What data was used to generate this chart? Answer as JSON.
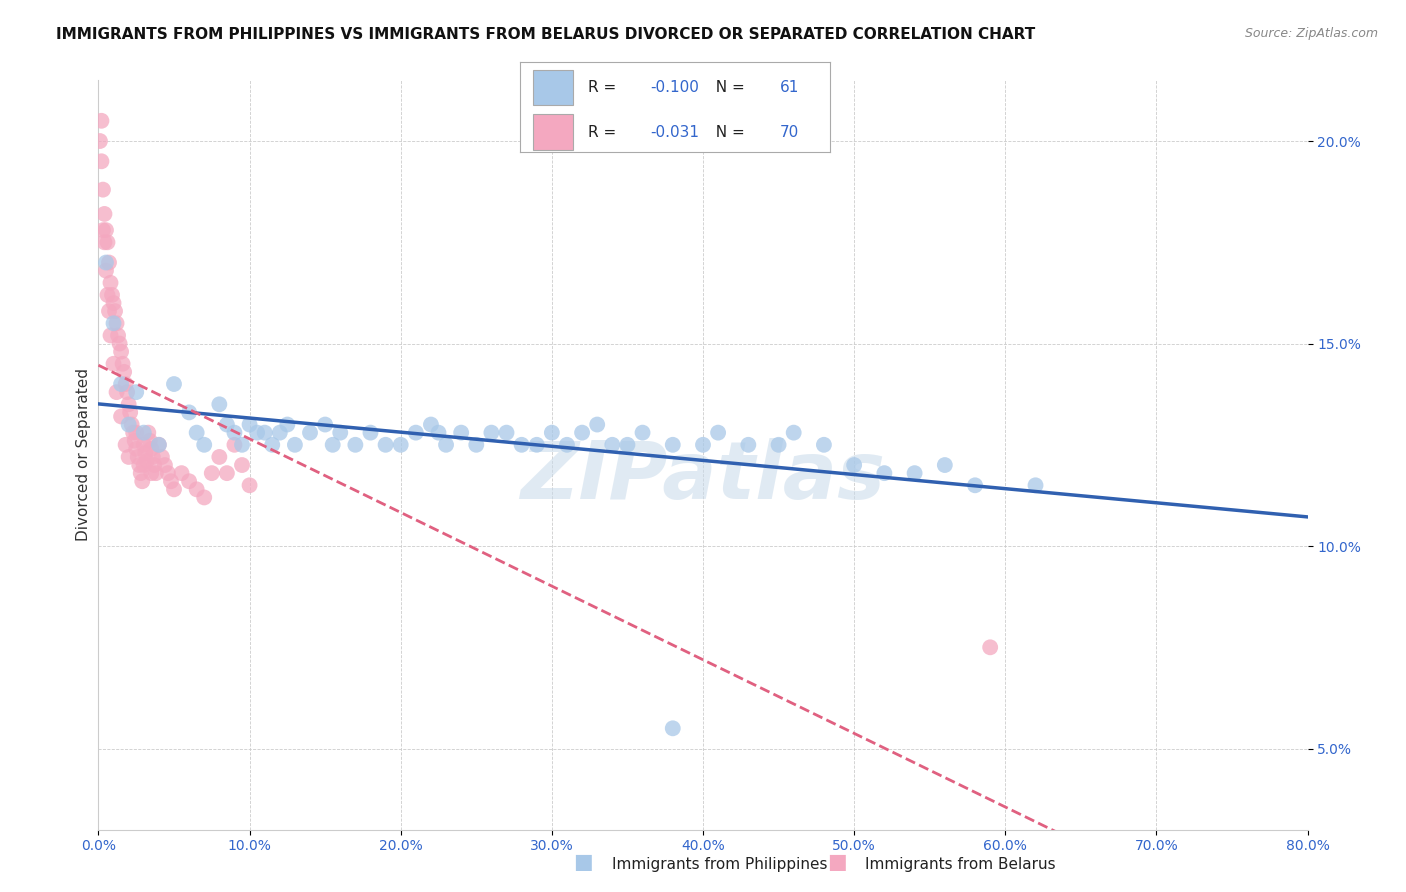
{
  "title": "IMMIGRANTS FROM PHILIPPINES VS IMMIGRANTS FROM BELARUS DIVORCED OR SEPARATED CORRELATION CHART",
  "source": "Source: ZipAtlas.com",
  "ylabel": "Divorced or Separated",
  "legend_label_1": "Immigrants from Philippines",
  "legend_label_2": "Immigrants from Belarus",
  "r1": -0.1,
  "n1": 61,
  "r2": -0.031,
  "n2": 70,
  "color1": "#a8c8e8",
  "color2": "#f4a8c0",
  "line_color1": "#3060b0",
  "line_color2": "#e06080",
  "xlim": [
    0.0,
    0.8
  ],
  "ylim": [
    0.03,
    0.215
  ],
  "xticks": [
    0.0,
    0.1,
    0.2,
    0.3,
    0.4,
    0.5,
    0.6,
    0.7,
    0.8
  ],
  "yticks": [
    0.05,
    0.1,
    0.15,
    0.2
  ],
  "background": "#ffffff",
  "philippines_x": [
    0.005,
    0.01,
    0.015,
    0.02,
    0.025,
    0.03,
    0.04,
    0.05,
    0.06,
    0.065,
    0.07,
    0.08,
    0.085,
    0.09,
    0.095,
    0.1,
    0.105,
    0.11,
    0.115,
    0.12,
    0.125,
    0.13,
    0.14,
    0.15,
    0.155,
    0.16,
    0.17,
    0.18,
    0.19,
    0.2,
    0.21,
    0.22,
    0.225,
    0.23,
    0.24,
    0.25,
    0.26,
    0.27,
    0.28,
    0.29,
    0.3,
    0.31,
    0.32,
    0.33,
    0.34,
    0.35,
    0.36,
    0.38,
    0.4,
    0.41,
    0.43,
    0.45,
    0.46,
    0.48,
    0.5,
    0.52,
    0.54,
    0.56,
    0.58,
    0.62,
    0.38
  ],
  "philippines_y": [
    0.17,
    0.155,
    0.14,
    0.13,
    0.138,
    0.128,
    0.125,
    0.14,
    0.133,
    0.128,
    0.125,
    0.135,
    0.13,
    0.128,
    0.125,
    0.13,
    0.128,
    0.128,
    0.125,
    0.128,
    0.13,
    0.125,
    0.128,
    0.13,
    0.125,
    0.128,
    0.125,
    0.128,
    0.125,
    0.125,
    0.128,
    0.13,
    0.128,
    0.125,
    0.128,
    0.125,
    0.128,
    0.128,
    0.125,
    0.125,
    0.128,
    0.125,
    0.128,
    0.13,
    0.125,
    0.125,
    0.128,
    0.125,
    0.125,
    0.128,
    0.125,
    0.125,
    0.128,
    0.125,
    0.12,
    0.118,
    0.118,
    0.12,
    0.115,
    0.115,
    0.055
  ],
  "belarus_x": [
    0.001,
    0.002,
    0.003,
    0.004,
    0.005,
    0.006,
    0.007,
    0.008,
    0.009,
    0.01,
    0.011,
    0.012,
    0.013,
    0.014,
    0.015,
    0.016,
    0.017,
    0.018,
    0.019,
    0.02,
    0.021,
    0.022,
    0.023,
    0.024,
    0.025,
    0.026,
    0.027,
    0.028,
    0.029,
    0.03,
    0.031,
    0.032,
    0.033,
    0.034,
    0.035,
    0.036,
    0.037,
    0.038,
    0.04,
    0.042,
    0.044,
    0.046,
    0.048,
    0.05,
    0.055,
    0.06,
    0.065,
    0.07,
    0.075,
    0.08,
    0.085,
    0.09,
    0.095,
    0.1,
    0.003,
    0.004,
    0.005,
    0.006,
    0.007,
    0.008,
    0.01,
    0.012,
    0.015,
    0.018,
    0.02,
    0.025,
    0.03,
    0.035,
    0.002,
    0.59
  ],
  "belarus_y": [
    0.2,
    0.195,
    0.188,
    0.182,
    0.178,
    0.175,
    0.17,
    0.165,
    0.162,
    0.16,
    0.158,
    0.155,
    0.152,
    0.15,
    0.148,
    0.145,
    0.143,
    0.14,
    0.138,
    0.135,
    0.133,
    0.13,
    0.128,
    0.126,
    0.124,
    0.122,
    0.12,
    0.118,
    0.116,
    0.125,
    0.123,
    0.121,
    0.128,
    0.126,
    0.124,
    0.122,
    0.12,
    0.118,
    0.125,
    0.122,
    0.12,
    0.118,
    0.116,
    0.114,
    0.118,
    0.116,
    0.114,
    0.112,
    0.118,
    0.122,
    0.118,
    0.125,
    0.12,
    0.115,
    0.178,
    0.175,
    0.168,
    0.162,
    0.158,
    0.152,
    0.145,
    0.138,
    0.132,
    0.125,
    0.122,
    0.128,
    0.12,
    0.118,
    0.205,
    0.075
  ]
}
